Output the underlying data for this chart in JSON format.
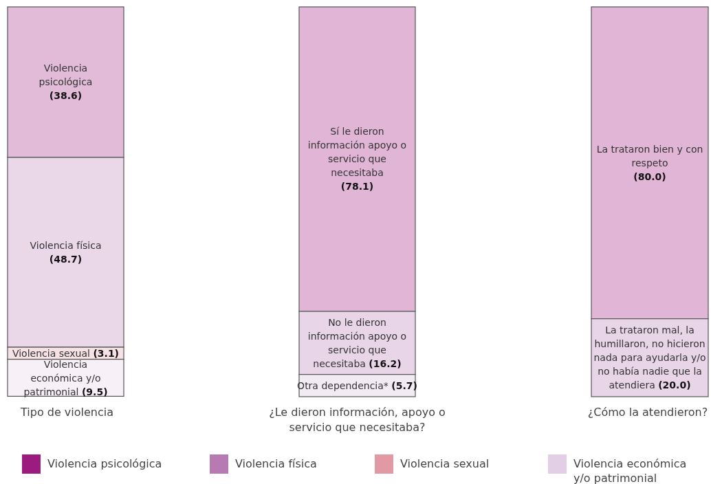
{
  "chart_data": {
    "type": "other",
    "legend": "bottom",
    "categories": [
      "Violencia psicológica",
      "Violencia física",
      "Violencia sexual",
      "Violencia económica y/o patrimonial",
      "Sí le dieron información apoyo o servicio que necesitaba",
      "No le dieron información apoyo o servicio que necesitaba",
      "Otra dependencia*",
      "La trataron bien y con respeto",
      "La trataron mal, la humillaron, no hicieron nada para ayudarla y/o no había nadie que la atendiera"
    ],
    "values": [
      null,
      null,
      null,
      null,
      78.1,
      16.2,
      5.7,
      80.0,
      20.0
    ],
    "value_labels": [
      null,
      null,
      null,
      null,
      "(78.1)",
      "(16.2)",
      "(5.7)",
      "(80.0)",
      "(20.0)"
    ],
    "colors": [
      null,
      null,
      null,
      null,
      "#e0b5d6",
      "#e9d5e8",
      "#f3ebf4",
      "#e0b5d6",
      "#e9d5e8"
    ],
    "annotations": [
      "Tipo de violencia",
      "¿Le dieron información, apoyo o servicio que necesitaba?",
      "¿Cómo la atendieron?"
    ],
    "series": [
      {
        "name": "Violencia psicológica",
        "color": "#9b1b7e",
        "values": [
          38.6,
          null,
          null,
          null,
          null,
          null,
          null,
          null,
          null
        ],
        "value_labels": [
          "(38.6)",
          null,
          null,
          null,
          null,
          null,
          null,
          null,
          null
        ]
      },
      {
        "name": "Violencia física",
        "color": "#b87ab3",
        "values": [
          null,
          48.7,
          null,
          null,
          null,
          null,
          null,
          null,
          null
        ],
        "value_labels": [
          null,
          "(48.7)",
          null,
          null,
          null,
          null,
          null,
          null,
          null
        ]
      },
      {
        "name": "Violencia sexual",
        "color": "#e19aa3",
        "values": [
          null,
          null,
          3.1,
          null,
          null,
          null,
          null,
          null,
          null
        ],
        "value_labels": [
          null,
          null,
          "(3.1)",
          null,
          null,
          null,
          null,
          null,
          null
        ]
      },
      {
        "name": "Violencia económica y/o patrimonial",
        "color": "#e3cfe5",
        "values": [
          null,
          null,
          null,
          9.5,
          null,
          null,
          null,
          null,
          null
        ],
        "value_labels": [
          null,
          null,
          null,
          "(9.5)",
          null,
          null,
          null,
          null,
          null
        ]
      }
    ]
  }
}
